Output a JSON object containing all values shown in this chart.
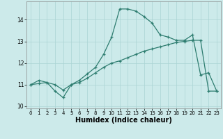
{
  "xlabel": "Humidex (Indice chaleur)",
  "ylabel": "",
  "x_values": [
    0,
    1,
    2,
    3,
    4,
    5,
    6,
    7,
    8,
    9,
    10,
    11,
    12,
    13,
    14,
    15,
    16,
    17,
    18,
    19,
    20,
    21,
    22,
    23
  ],
  "curve1": [
    11.0,
    11.2,
    11.1,
    10.7,
    10.4,
    11.0,
    11.2,
    11.5,
    11.8,
    12.4,
    13.2,
    14.5,
    14.5,
    14.4,
    14.15,
    13.85,
    13.3,
    13.2,
    13.05,
    13.05,
    13.3,
    11.45,
    11.55,
    10.7
  ],
  "curve2": [
    11.0,
    11.05,
    11.1,
    11.0,
    10.75,
    11.0,
    11.1,
    11.3,
    11.55,
    11.8,
    12.0,
    12.1,
    12.25,
    12.4,
    12.55,
    12.65,
    12.75,
    12.85,
    12.95,
    13.0,
    13.05,
    13.05,
    10.7,
    10.7
  ],
  "ylim": [
    9.9,
    14.85
  ],
  "xlim": [
    -0.5,
    23.5
  ],
  "yticks": [
    10,
    11,
    12,
    13,
    14
  ],
  "xticks": [
    0,
    1,
    2,
    3,
    4,
    5,
    6,
    7,
    8,
    9,
    10,
    11,
    12,
    13,
    14,
    15,
    16,
    17,
    18,
    19,
    20,
    21,
    22,
    23
  ],
  "line_color": "#2e7d70",
  "bg_color": "#cceaea",
  "grid_color": "#aad4d4",
  "fig_bg": "#cceaea"
}
